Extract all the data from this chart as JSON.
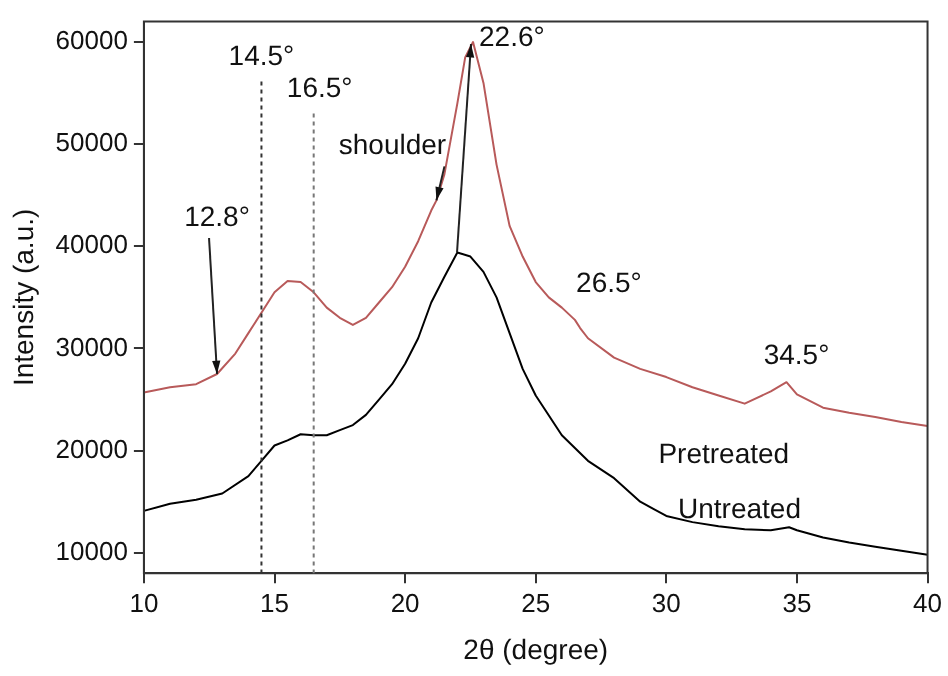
{
  "chart_data": {
    "type": "line",
    "xlabel": "2θ (degree)",
    "ylabel": "Intensity (a.u.)",
    "xlim": [
      10,
      40
    ],
    "xticks": [
      10,
      15,
      20,
      25,
      30,
      35,
      40
    ],
    "ylim": [
      8000,
      62000
    ],
    "yticks": [
      10000,
      20000,
      30000,
      40000,
      50000,
      60000
    ],
    "grid": false,
    "legend": false,
    "marker": "none",
    "line_style": "solid",
    "series": [
      {
        "name": "Pretreated",
        "color": "#b85a5a",
        "x": [
          10,
          11,
          12,
          12.8,
          13.5,
          14,
          14.5,
          15,
          15.5,
          16,
          16.5,
          17,
          17.5,
          18,
          18.5,
          19,
          19.5,
          20,
          20.5,
          21,
          21.2,
          21.5,
          22,
          22.3,
          22.6,
          23,
          23.5,
          24,
          24.5,
          25,
          25.5,
          26,
          26.5,
          26.7,
          27,
          28,
          29,
          30,
          31,
          32,
          33,
          34,
          34.6,
          35,
          36,
          37,
          38,
          39,
          40
        ],
        "values": [
          25700,
          26200,
          26500,
          27500,
          29500,
          31500,
          33500,
          35500,
          36600,
          36500,
          35500,
          34000,
          33000,
          32300,
          33000,
          34500,
          36000,
          38000,
          40500,
          43500,
          44500,
          47000,
          54000,
          58500,
          60000,
          56000,
          48000,
          42000,
          39000,
          36500,
          35000,
          34000,
          32800,
          32000,
          31000,
          29100,
          28000,
          27200,
          26200,
          25400,
          24600,
          25800,
          26700,
          25500,
          24200,
          23700,
          23300,
          22800,
          22400
        ]
      },
      {
        "name": "Untreated",
        "color": "#000000",
        "x": [
          10,
          11,
          12,
          13,
          14,
          14.5,
          15,
          15.5,
          16,
          16.5,
          17,
          17.5,
          18,
          18.5,
          19,
          19.5,
          20,
          20.5,
          21,
          21.5,
          22,
          22.5,
          23,
          23.5,
          24,
          24.5,
          25,
          26,
          27,
          28,
          29,
          30,
          31,
          32,
          33,
          34,
          34.7,
          35,
          36,
          37,
          38,
          39,
          40
        ],
        "values": [
          14100,
          14800,
          15200,
          15800,
          17500,
          19000,
          20500,
          21000,
          21600,
          21500,
          21500,
          22000,
          22500,
          23500,
          25000,
          26500,
          28500,
          31000,
          34500,
          37000,
          39400,
          39000,
          37500,
          35000,
          31500,
          28000,
          25400,
          21500,
          19000,
          17300,
          15000,
          13600,
          13000,
          12600,
          12300,
          12200,
          12500,
          12200,
          11500,
          11000,
          10600,
          10200,
          9800
        ]
      }
    ],
    "ref_lines": [
      {
        "axis": "x",
        "value": 14.5,
        "label": "14.5°",
        "line_style": "dotted",
        "color": "#333333"
      },
      {
        "axis": "x",
        "value": 16.5,
        "label": "16.5°",
        "line_style": "dotted",
        "color": "#777777"
      }
    ],
    "annotations": [
      {
        "text": "12.8°",
        "x": 12.8,
        "y": 27500
      },
      {
        "text": "shoulder",
        "x": 21.2,
        "y": 44500
      },
      {
        "text": "22.6°",
        "x": 22.6,
        "y": 60000
      },
      {
        "text": "26.5°",
        "x": 26.5,
        "y": 32800
      },
      {
        "text": "34.5°",
        "x": 34.6,
        "y": 26700
      }
    ]
  }
}
